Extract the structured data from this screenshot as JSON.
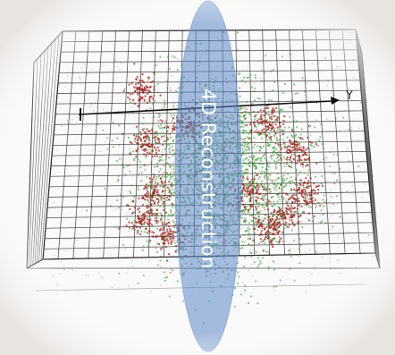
{
  "axis": {
    "y_label": "Y"
  },
  "overlay": {
    "label": "4D Reconstruction"
  },
  "colors": {
    "background": "#ffffff",
    "grid": "#222222",
    "cluster_green": "#2e9a2e",
    "cluster_red": "#9a2a22",
    "ellipse_fill": "#5b86c6"
  }
}
